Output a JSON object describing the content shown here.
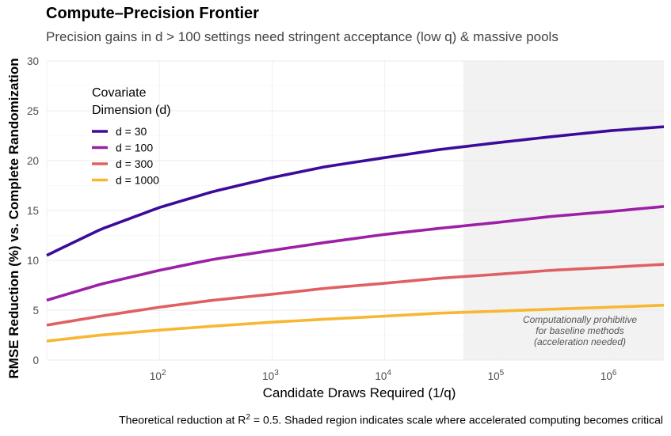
{
  "title": "Compute–Precision Frontier",
  "subtitle": "Precision gains in d > 100 settings need stringent acceptance (low q) & massive pools",
  "caption": {
    "before": "Theoretical reduction at R",
    "sup": "2",
    "after": " = 0.5. Shaded region indicates scale where accelerated computing becomes critical"
  },
  "chart_data": {
    "type": "line",
    "title": "Compute–Precision Frontier",
    "xlabel": "Candidate Draws Required (1/q)",
    "ylabel": "RMSE Reduction (%) vs. Complete Randomization",
    "x_scale": "log10",
    "xlim": [
      10,
      3000000
    ],
    "ylim": [
      0,
      30
    ],
    "y_ticks": [
      0,
      5,
      10,
      15,
      20,
      25,
      30
    ],
    "y_tick_labels": [
      "0",
      "5",
      "10",
      "15",
      "20",
      "25",
      "30"
    ],
    "x_ticks": [
      100,
      1000,
      10000,
      100000,
      1000000
    ],
    "x_tick_labels": [
      {
        "base": "10",
        "exp": "2"
      },
      {
        "base": "10",
        "exp": "3"
      },
      {
        "base": "10",
        "exp": "4"
      },
      {
        "base": "10",
        "exp": "5"
      },
      {
        "base": "10",
        "exp": "6"
      }
    ],
    "x": [
      10,
      30,
      100,
      300,
      1000,
      3000,
      10000,
      30000,
      100000,
      300000,
      1000000,
      3000000
    ],
    "series": [
      {
        "name": "d = 30",
        "color": "#3d0b9a",
        "values": [
          10.5,
          13.1,
          15.3,
          16.9,
          18.3,
          19.4,
          20.3,
          21.1,
          21.8,
          22.4,
          23.0,
          23.4
        ]
      },
      {
        "name": "d = 100",
        "color": "#9c20a6",
        "values": [
          6.0,
          7.6,
          9.0,
          10.1,
          11.0,
          11.8,
          12.6,
          13.2,
          13.8,
          14.4,
          14.9,
          15.4
        ]
      },
      {
        "name": "d = 300",
        "color": "#e06061",
        "values": [
          3.5,
          4.4,
          5.3,
          6.0,
          6.6,
          7.2,
          7.7,
          8.2,
          8.6,
          9.0,
          9.3,
          9.6
        ]
      },
      {
        "name": "d = 1000",
        "color": "#f7b733",
        "values": [
          1.9,
          2.5,
          3.0,
          3.4,
          3.8,
          4.1,
          4.4,
          4.7,
          4.9,
          5.1,
          5.3,
          5.5
        ]
      }
    ],
    "shaded_region": {
      "x_start": 50000,
      "x_end": 3000000,
      "annotation": [
        "Computationally prohibitive",
        "for baseline methods",
        "(acceleration needed)"
      ]
    },
    "legend": {
      "title": [
        "Covariate",
        "Dimension (d)"
      ],
      "position": "top-left"
    },
    "grid": true
  }
}
